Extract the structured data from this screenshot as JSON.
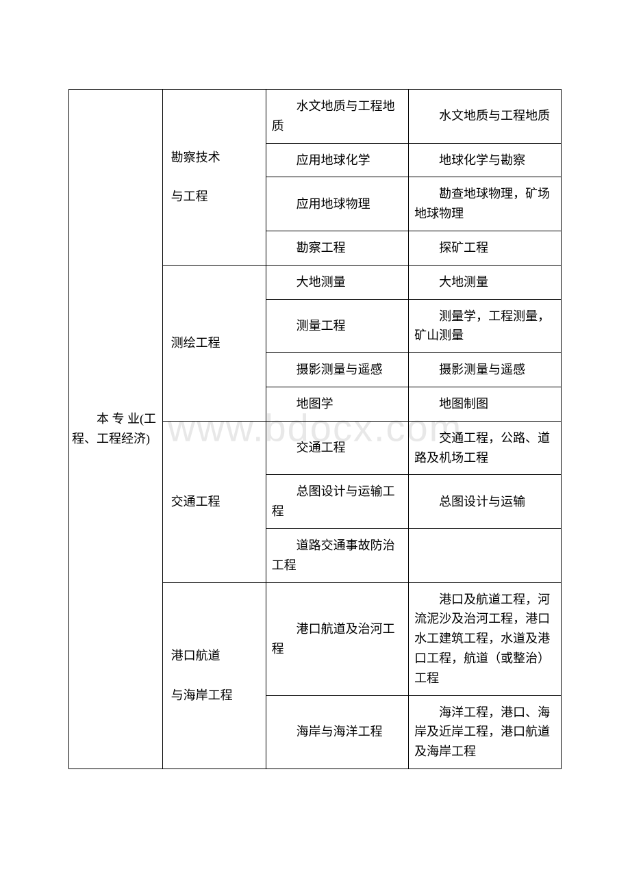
{
  "watermark": "www.bdocx.com",
  "table": {
    "column_widths": [
      "19%",
      "21%",
      "29%",
      "31%"
    ],
    "border_color": "#000000",
    "font_size": 18,
    "rows": [
      {
        "category": "本 专 业(工程、工程经济)",
        "category_rowspan": 13,
        "subcategory": "勘察技术\n与工程",
        "subcategory_rowspan": 4,
        "col3": "水文地质与工程地质",
        "col4": "水文地质与工程地质"
      },
      {
        "col3": "应用地球化学",
        "col4": "地球化学与勘察"
      },
      {
        "col3": "应用地球物理",
        "col4": "勘查地球物理，矿场地球物理"
      },
      {
        "col3": "勘察工程",
        "col4": "探矿工程"
      },
      {
        "subcategory": "测绘工程",
        "subcategory_rowspan": 4,
        "col3": "大地测量",
        "col4": "大地测量"
      },
      {
        "col3": "测量工程",
        "col4": "测量学，工程测量，矿山测量"
      },
      {
        "col3": "摄影测量与遥感",
        "col4": "摄影测量与遥感"
      },
      {
        "col3": "地图学",
        "col4": "地图制图"
      },
      {
        "subcategory": "交通工程",
        "subcategory_rowspan": 3,
        "col3": "交通工程",
        "col4": "交通工程，公路、道路及机场工程"
      },
      {
        "col3": "总图设计与运输工程",
        "col4": "总图设计与运输"
      },
      {
        "col3": "道路交通事故防治工程",
        "col4": ""
      },
      {
        "subcategory": "港口航道\n与海岸工程",
        "subcategory_rowspan": 2,
        "col3": "港口航道及治河工程",
        "col4": "港口及航道工程，河流泥沙及治河工程，港口水工建筑工程，水道及港口工程，航道（或整治）工程"
      },
      {
        "col3": "海岸与海洋工程",
        "col4": "海洋工程，港口、海岸及近岸工程，港口航道及海岸工程"
      }
    ]
  }
}
